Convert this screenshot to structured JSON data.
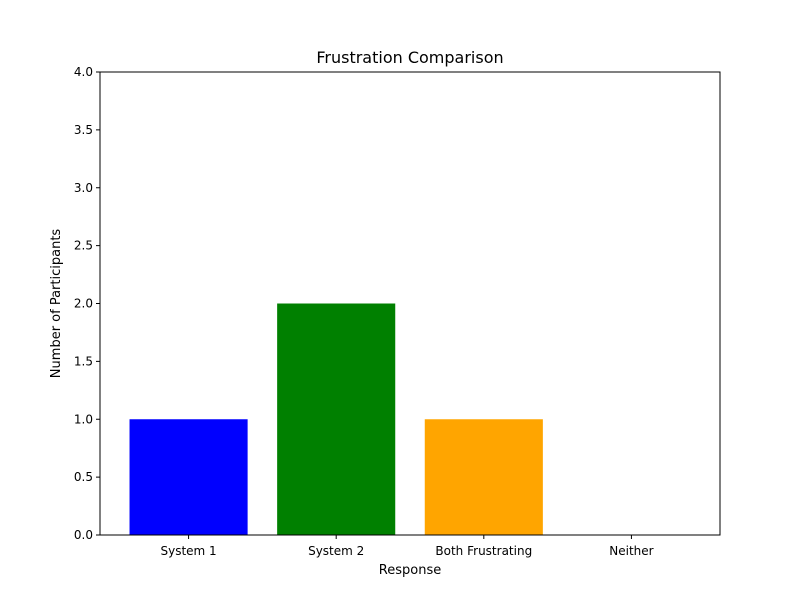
{
  "chart_data": {
    "type": "bar",
    "title": "Frustration Comparison",
    "xlabel": "Response",
    "ylabel": "Number of Participants",
    "categories": [
      "System 1",
      "System 2",
      "Both Frustrating",
      "Neither"
    ],
    "values": [
      1,
      2,
      1,
      0
    ],
    "colors": [
      "#0000ff",
      "#008000",
      "#ffa500",
      "#ff0000"
    ],
    "ylim": [
      0,
      4
    ],
    "yticks": [
      "0.0",
      "0.5",
      "1.0",
      "1.5",
      "2.0",
      "2.5",
      "3.0",
      "3.5",
      "4.0"
    ],
    "grid": false,
    "legend": "none"
  }
}
